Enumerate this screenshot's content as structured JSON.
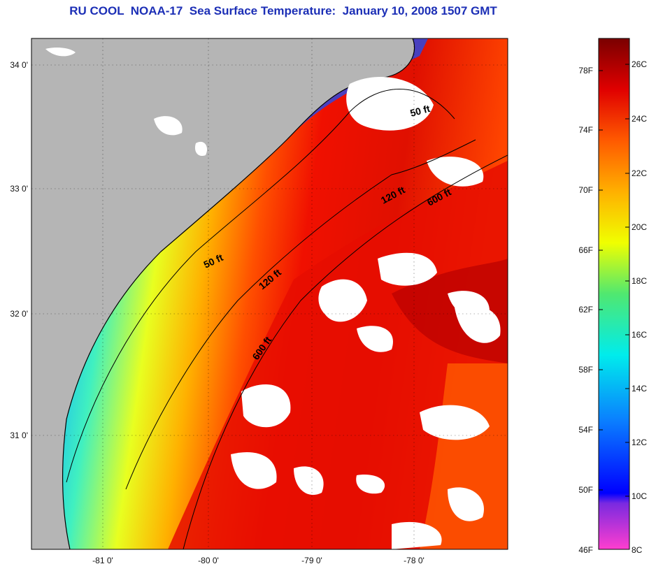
{
  "title": "RU COOL  NOAA-17  Sea Surface Temperature:  January 10, 2008 1507 GMT",
  "axes": {
    "lat_labels": [
      "34 0'",
      "33 0'",
      "32 0'",
      "31 0'"
    ],
    "lon_labels": [
      "-81 0'",
      "-80 0'",
      "-79 0'",
      "-78 0'"
    ]
  },
  "contours": [
    {
      "label": "50 ft",
      "id": "a"
    },
    {
      "label": "50 ft",
      "id": "b"
    },
    {
      "label": "120 ft",
      "id": "a"
    },
    {
      "label": "120 ft",
      "id": "b"
    },
    {
      "label": "600 ft",
      "id": "a"
    },
    {
      "label": "600 ft",
      "id": "b"
    }
  ],
  "colorbar": {
    "fahrenheit": [
      "78F",
      "74F",
      "70F",
      "66F",
      "62F",
      "58F",
      "54F",
      "50F",
      "46F"
    ],
    "celsius": [
      "26C",
      "24C",
      "22C",
      "20C",
      "18C",
      "16C",
      "14C",
      "12C",
      "10C",
      "8C"
    ]
  },
  "colors": {
    "land": "#b5b5b5",
    "cloud": "#ffffff",
    "title": "#1c2fb6"
  }
}
